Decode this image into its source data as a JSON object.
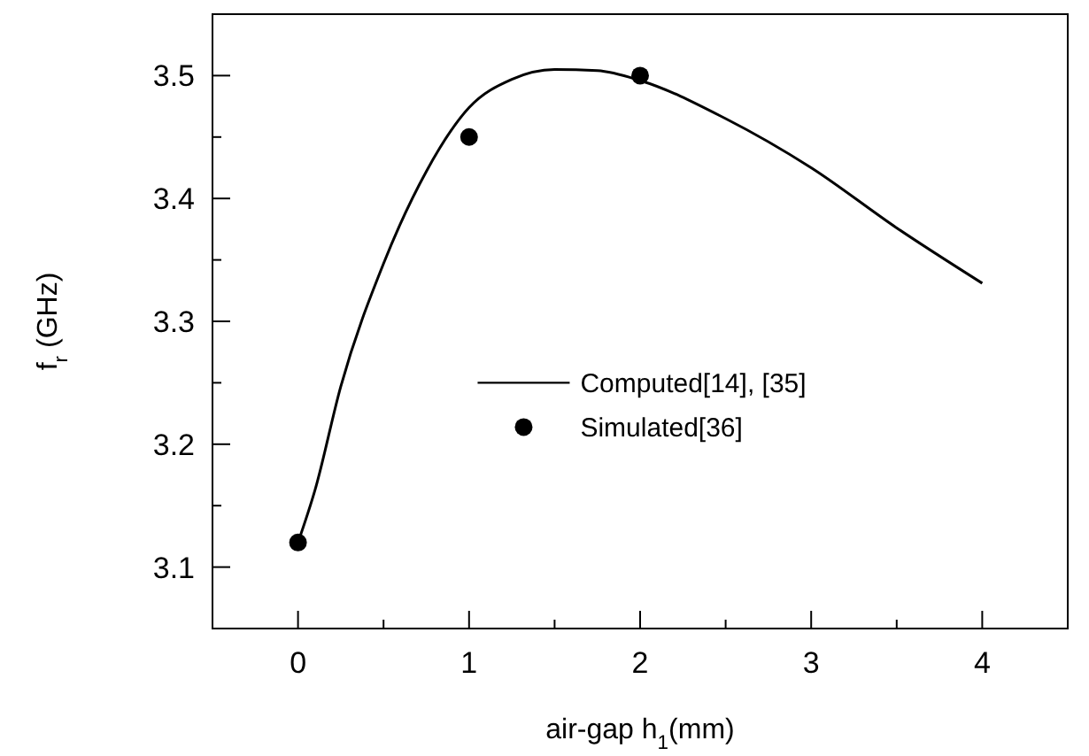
{
  "chart_data": {
    "type": "line",
    "xlabel": "air-gap h$_{1}$(mm)",
    "ylabel": "f$_{r}$ (GHz)",
    "xlim": [
      -0.5,
      4.5
    ],
    "ylim": [
      3.05,
      3.55
    ],
    "xticks": [
      0,
      {
        "value": 0.5,
        "label": null
      },
      1,
      {
        "value": 1.5,
        "label": null
      },
      2,
      {
        "value": 2.5,
        "label": null
      },
      3,
      {
        "value": 3.5,
        "label": null
      },
      4
    ],
    "yticks": [
      {
        "value": 3.1,
        "label": "3.1"
      },
      {
        "value": 3.15,
        "label": null
      },
      {
        "value": 3.2,
        "label": "3.2"
      },
      {
        "value": 3.25,
        "label": null
      },
      {
        "value": 3.3,
        "label": "3.3"
      },
      {
        "value": 3.35,
        "label": null
      },
      {
        "value": 3.4,
        "label": "3.4"
      },
      {
        "value": 3.45,
        "label": null
      },
      {
        "value": 3.5,
        "label": "3.5"
      }
    ],
    "grid": false,
    "legend": "center",
    "series": [
      {
        "name": "Computed[14], [35]",
        "type": "line",
        "color": "#000000",
        "marker": "none",
        "line_style": "solid",
        "x": [
          0,
          0.1,
          0.25,
          0.5,
          0.75,
          1,
          1.25,
          1.5,
          1.75,
          2,
          2.5,
          3,
          3.5,
          4
        ],
        "values": [
          3.12,
          3.163,
          3.247,
          3.347,
          3.422,
          3.474,
          3.497,
          3.505,
          3.504,
          3.496,
          3.465,
          3.425,
          3.376,
          3.331
        ]
      },
      {
        "name": "Simulated[36]",
        "type": "scatter",
        "color": "#000000",
        "marker": "circle",
        "x": [
          0,
          1,
          2
        ],
        "values": [
          3.12,
          3.45,
          3.5
        ]
      }
    ]
  }
}
